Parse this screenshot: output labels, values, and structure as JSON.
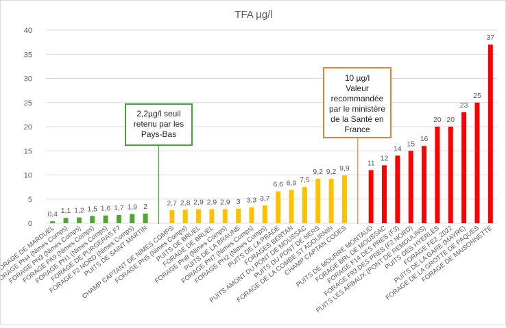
{
  "chart_data": {
    "type": "bar",
    "title": "TFA µg/l",
    "ylim": [
      0,
      40
    ],
    "yticks": [
      0,
      5,
      10,
      15,
      20,
      25,
      30,
      35,
      40
    ],
    "grid": true,
    "colors": {
      "green": "#4ea72e",
      "yellow": "#ffc000",
      "red": "#ff0000",
      "green_line": "#3fa535",
      "orange_line": "#ed7d31",
      "grid": "#d9d9d9",
      "text": "#595959"
    },
    "groups": [
      {
        "color": "green",
        "categories": [
          "FORAGE DE MARDUEL",
          "FORAGE PN4 (Nimes Comps)",
          "FORAGE PN3 (Nimes Comps)",
          "FORAGE PA9 (Nimes Comps)",
          "FORAGE PN1 (Nimes Comps)",
          "FORAGE DE PURGERAS F7",
          "FORAGE F2 NORD (Nimes Comps)",
          "PUITS DE SAINT MARTIN"
        ],
        "values": [
          0.4,
          1.1,
          1.2,
          1.5,
          1.6,
          1.7,
          1.9,
          2
        ],
        "labels": [
          "0,4",
          "1,1",
          "1,2",
          "1,5",
          "1,6",
          "1,7",
          "1,9",
          "2"
        ]
      },
      {
        "color": "yellow",
        "categories": [
          "CHAMP CAPTANT DE NIMES COMPS",
          "FORAGE PN5 (Nimes Comps)",
          "PUITS DE BRUEL",
          "FORAGE DE BRUEL",
          "FORAGE PN8 (Nimes Comps)",
          "PUITS DE LA BRAUNE",
          "FORAGE PN7 (Nimes Comps)",
          "FORAGE PN2 (Nimes Comps)",
          "PUITS DE LA PRADE",
          "FORAGES BERTAN",
          "PUITS AMONT DU PONT DE MOUSSAC",
          "PUITS DU PONT DE NERS",
          "FORAGE DE LA COMBE ST ADOURNIN",
          "CHAMP CAPTAN CODES"
        ],
        "values": [
          2.7,
          2.8,
          2.9,
          2.9,
          2.9,
          3,
          3.3,
          3.7,
          6.6,
          6.9,
          7.5,
          9.2,
          9.2,
          9.9
        ],
        "labels": [
          "2,7",
          "2,8",
          "2,9",
          "2,9",
          "2,9",
          "3",
          "3,3",
          "3,7",
          "6,6",
          "6,9",
          "7,5",
          "9,2",
          "9,2",
          "9,9"
        ]
      },
      {
        "color": "red",
        "categories": [
          "PUITS DE MOURRE MONTAUD",
          "FORAGE BRL DE MOUSSAC",
          "FORAGE F14 DES PRES (F3)",
          "FORAGE F93 DES PRES (F2 NORD)",
          "PUITS LES ARBAUX (PONT DE REMOULINS)",
          "PUITS DES HYERLES",
          "FORAGE FE2_2022",
          "PUITS DE LA GARE (MAYRE)",
          "FORAGE DE LA GROTTE DE PAQUES",
          "FORAGE DE MAISONNETTE"
        ],
        "values": [
          11,
          12,
          14,
          15,
          16,
          20,
          20,
          23,
          25,
          37
        ],
        "labels": [
          "11",
          "12",
          "14",
          "15",
          "16",
          "20",
          "20",
          "23",
          "25",
          "37"
        ]
      }
    ],
    "annotations": {
      "green": {
        "lines": [
          "2,2µg/l seuil",
          "retenu par les",
          "Pays-Bas"
        ]
      },
      "orange": {
        "lines": [
          "10 µg/l",
          "Valeur",
          "recommandée",
          "par le ministère",
          "de la Santé en",
          "France"
        ]
      }
    }
  }
}
